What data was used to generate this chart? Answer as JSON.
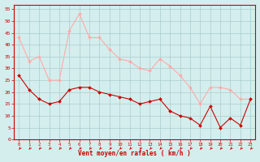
{
  "x": [
    0,
    1,
    2,
    3,
    4,
    5,
    6,
    7,
    8,
    9,
    10,
    11,
    12,
    13,
    14,
    15,
    16,
    17,
    18,
    19,
    20,
    21,
    22,
    23
  ],
  "wind_avg": [
    27,
    21,
    17,
    15,
    16,
    21,
    22,
    22,
    20,
    19,
    18,
    17,
    15,
    16,
    17,
    12,
    10,
    9,
    6,
    14,
    5,
    9,
    6,
    17
  ],
  "wind_gust": [
    43,
    33,
    35,
    25,
    25,
    46,
    53,
    43,
    43,
    38,
    34,
    33,
    30,
    29,
    34,
    31,
    27,
    22,
    15,
    22,
    22,
    21,
    17,
    17
  ],
  "yticks": [
    0,
    5,
    10,
    15,
    20,
    25,
    30,
    35,
    40,
    45,
    50,
    55
  ],
  "ylim": [
    0,
    57
  ],
  "xlim": [
    -0.5,
    23.5
  ],
  "bg_color": "#d4eeed",
  "grid_color": "#aacccc",
  "line_avg_color": "#cc0000",
  "line_gust_color": "#ffaaaa",
  "marker_avg_color": "#cc0000",
  "marker_gust_color": "#ffaaaa",
  "xlabel": "Vent moyen/en rafales ( km/h )",
  "xlabel_color": "#cc0000",
  "tick_color": "#cc0000",
  "spine_color": "#cc0000"
}
